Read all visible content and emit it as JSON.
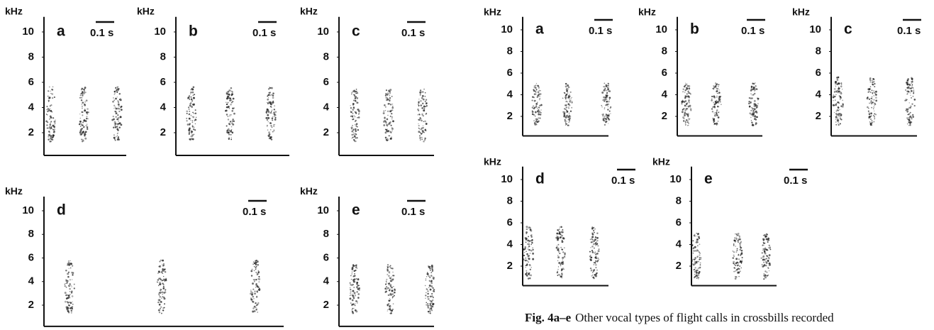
{
  "figures": [
    {
      "panels": [
        {
          "label": "a",
          "y_label": "kHz",
          "yticks": [
            2,
            4,
            6,
            8,
            10
          ],
          "scale_bar": "0.1 s"
        },
        {
          "label": "b",
          "y_label": "kHz",
          "yticks": [
            2,
            4,
            6,
            8,
            10
          ],
          "scale_bar": "0.1 s"
        },
        {
          "label": "c",
          "y_label": "kHz",
          "yticks": [
            2,
            4,
            6,
            8,
            10
          ],
          "scale_bar": "0.1 s"
        },
        {
          "label": "d",
          "y_label": "kHz",
          "yticks": [
            2,
            4,
            6,
            8,
            10
          ],
          "scale_bar": "0.1 s"
        },
        {
          "label": "e",
          "y_label": "kHz",
          "yticks": [
            2,
            4,
            6,
            8,
            10
          ],
          "scale_bar": "0.1 s"
        }
      ]
    },
    {
      "panels": [
        {
          "label": "a",
          "y_label": "kHz",
          "yticks": [
            2,
            4,
            6,
            8,
            10
          ],
          "scale_bar": "0.1 s"
        },
        {
          "label": "b",
          "y_label": "kHz",
          "yticks": [
            2,
            4,
            6,
            8,
            10
          ],
          "scale_bar": "0.1 s"
        },
        {
          "label": "c",
          "y_label": "kHz",
          "yticks": [
            2,
            4,
            6,
            8,
            10
          ],
          "scale_bar": "0.1 s"
        },
        {
          "label": "d",
          "y_label": "kHz",
          "yticks": [
            2,
            4,
            6,
            8,
            10
          ],
          "scale_bar": "0.1 s"
        },
        {
          "label": "e",
          "y_label": "kHz",
          "yticks": [
            2,
            4,
            6,
            8,
            10
          ],
          "scale_bar": "0.1 s"
        }
      ]
    }
  ],
  "caption": {
    "label": "Fig. 4a–e",
    "text": "Other vocal types of flight calls in crossbills recorded"
  }
}
